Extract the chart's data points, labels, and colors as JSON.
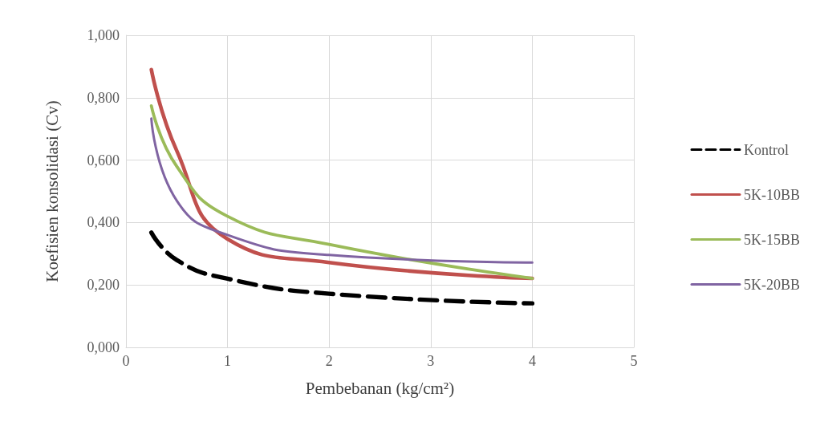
{
  "chart_data": {
    "type": "line",
    "xlabel": "Pembebanan (kg/cm²)",
    "ylabel": "Koefisien konsolidasi (Cv)",
    "x": [
      0.25,
      0.5,
      1,
      2,
      4
    ],
    "series": [
      {
        "name": "Kontrol",
        "color": "#000000",
        "line_style": "dashed",
        "values": [
          0.368,
          0.28,
          0.22,
          0.172,
          0.141
        ]
      },
      {
        "name": "5K-10BB",
        "color": "#c0504d",
        "values": [
          0.89,
          0.63,
          0.347,
          0.272,
          0.221
        ]
      },
      {
        "name": "5K-15BB",
        "color": "#9bbb59",
        "values": [
          0.774,
          0.58,
          0.42,
          0.33,
          0.221
        ]
      },
      {
        "name": "5K-20BB",
        "color": "#8064a2",
        "values": [
          0.733,
          0.47,
          0.36,
          0.296,
          0.272
        ]
      }
    ],
    "xlim": [
      0,
      5
    ],
    "xticks": [
      0,
      1,
      2,
      3,
      4,
      5
    ],
    "ylim": [
      0,
      1
    ],
    "yticks": [
      {
        "value": 0,
        "label": "0,000"
      },
      {
        "value": 0.2,
        "label": "0,200"
      },
      {
        "value": 0.4,
        "label": "0,400"
      },
      {
        "value": 0.6,
        "label": "0,600"
      },
      {
        "value": 0.8,
        "label": "0,800"
      },
      {
        "value": 1,
        "label": "1,000"
      }
    ],
    "grid": true,
    "legend": "right",
    "marker": "none",
    "line_style": "solid"
  }
}
